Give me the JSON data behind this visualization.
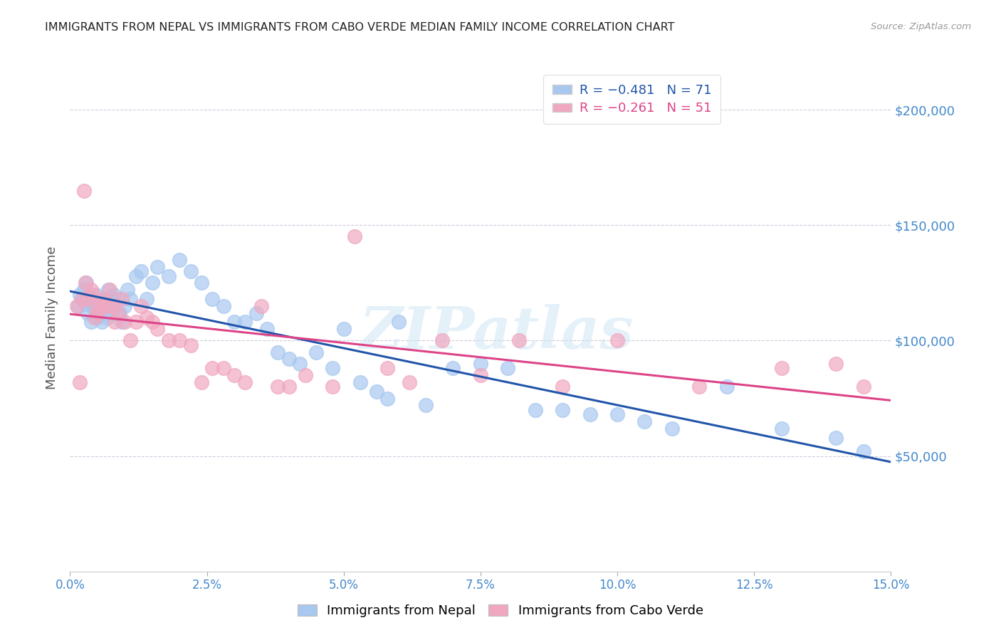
{
  "title": "IMMIGRANTS FROM NEPAL VS IMMIGRANTS FROM CABO VERDE MEDIAN FAMILY INCOME CORRELATION CHART",
  "source": "Source: ZipAtlas.com",
  "ylabel": "Median Family Income",
  "color_nepal": "#A8C8F0",
  "color_cabo": "#F0A8C0",
  "line_color_nepal": "#2255AA",
  "line_color_cabo": "#DD4488",
  "legend_R_nepal": "R = −0.481",
  "legend_N_nepal": "N = 71",
  "legend_R_cabo": "R = −0.261",
  "legend_N_cabo": "N = 51",
  "nepal_x": [
    0.15,
    0.18,
    0.22,
    0.25,
    0.28,
    0.3,
    0.32,
    0.35,
    0.38,
    0.4,
    0.42,
    0.45,
    0.48,
    0.5,
    0.52,
    0.55,
    0.58,
    0.6,
    0.62,
    0.65,
    0.68,
    0.7,
    0.72,
    0.75,
    0.78,
    0.8,
    0.85,
    0.9,
    0.95,
    1.0,
    1.05,
    1.1,
    1.2,
    1.3,
    1.4,
    1.5,
    1.6,
    1.8,
    2.0,
    2.2,
    2.4,
    2.6,
    2.8,
    3.0,
    3.2,
    3.4,
    3.6,
    3.8,
    4.0,
    4.2,
    4.5,
    4.8,
    5.0,
    5.3,
    5.6,
    5.8,
    6.0,
    6.5,
    7.0,
    7.5,
    8.0,
    8.5,
    9.0,
    9.5,
    10.0,
    10.5,
    11.0,
    12.0,
    13.0,
    14.0,
    14.5
  ],
  "nepal_y": [
    115000,
    120000,
    118000,
    122000,
    116000,
    125000,
    112000,
    119000,
    108000,
    115000,
    118000,
    114000,
    120000,
    110000,
    116000,
    113000,
    108000,
    118000,
    112000,
    115000,
    110000,
    122000,
    118000,
    115000,
    112000,
    120000,
    118000,
    112000,
    108000,
    115000,
    122000,
    118000,
    128000,
    130000,
    118000,
    125000,
    132000,
    128000,
    135000,
    130000,
    125000,
    118000,
    115000,
    108000,
    108000,
    112000,
    105000,
    95000,
    92000,
    90000,
    95000,
    88000,
    105000,
    82000,
    78000,
    75000,
    108000,
    72000,
    88000,
    90000,
    88000,
    70000,
    70000,
    68000,
    68000,
    65000,
    62000,
    80000,
    62000,
    58000,
    52000
  ],
  "cabo_x": [
    0.12,
    0.18,
    0.22,
    0.28,
    0.32,
    0.38,
    0.42,
    0.48,
    0.52,
    0.58,
    0.62,
    0.68,
    0.72,
    0.78,
    0.82,
    0.88,
    0.95,
    1.0,
    1.1,
    1.2,
    1.3,
    1.4,
    1.5,
    1.6,
    1.8,
    2.0,
    2.2,
    2.4,
    2.6,
    2.8,
    3.0,
    3.2,
    3.5,
    3.8,
    4.0,
    4.3,
    4.8,
    5.2,
    5.8,
    6.2,
    6.8,
    7.5,
    8.2,
    9.0,
    10.0,
    11.5,
    13.0,
    14.0,
    14.5,
    0.25,
    0.45
  ],
  "cabo_y": [
    115000,
    82000,
    118000,
    125000,
    118000,
    122000,
    120000,
    115000,
    112000,
    115000,
    118000,
    115000,
    122000,
    115000,
    108000,
    112000,
    118000,
    108000,
    100000,
    108000,
    115000,
    110000,
    108000,
    105000,
    100000,
    100000,
    98000,
    82000,
    88000,
    88000,
    85000,
    82000,
    115000,
    80000,
    80000,
    85000,
    80000,
    145000,
    88000,
    82000,
    100000,
    85000,
    100000,
    80000,
    100000,
    80000,
    88000,
    90000,
    80000,
    165000,
    110000
  ],
  "watermark": "ZIPatlas",
  "background_color": "#FFFFFF",
  "grid_color": "#CCCCDD",
  "title_color": "#222222",
  "axis_label_color": "#555555",
  "tick_color": "#4488CC",
  "right_tick_color": "#4488CC"
}
